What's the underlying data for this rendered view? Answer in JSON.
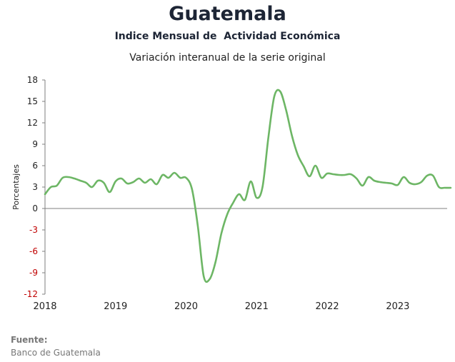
{
  "header": {
    "title": "Guatemala",
    "subtitle": "Indice Mensual de  Actividad Económica",
    "description": "Variación interanual de la serie original"
  },
  "footer": {
    "source_label": "Fuente:",
    "source": "Banco de Guatemala"
  },
  "chart_data": {
    "type": "line",
    "title": "Guatemala",
    "subtitle": "Indice Mensual de  Actividad Económica",
    "ylabel": "Porcentajes",
    "xlabel": "",
    "ylim": [
      -12,
      18
    ],
    "yticks": [
      18,
      15,
      12,
      9,
      6,
      3,
      0,
      -3,
      -6,
      -9,
      -12
    ],
    "xticks": [
      "2018",
      "2019",
      "2020",
      "2021",
      "2022",
      "2023"
    ],
    "grid": false,
    "line_color": "#6db665",
    "negative_tick_color": "#c00000",
    "series": [
      {
        "name": "",
        "x": [
          "2018-01",
          "2018-02",
          "2018-03",
          "2018-04",
          "2018-05",
          "2018-06",
          "2018-07",
          "2018-08",
          "2018-09",
          "2018-10",
          "2018-11",
          "2018-12",
          "2019-01",
          "2019-02",
          "2019-03",
          "2019-04",
          "2019-05",
          "2019-06",
          "2019-07",
          "2019-08",
          "2019-09",
          "2019-10",
          "2019-11",
          "2019-12",
          "2020-01",
          "2020-02",
          "2020-03",
          "2020-04",
          "2020-05",
          "2020-06",
          "2020-07",
          "2020-08",
          "2020-09",
          "2020-10",
          "2020-11",
          "2020-12",
          "2021-01",
          "2021-02",
          "2021-03",
          "2021-04",
          "2021-05",
          "2021-06",
          "2021-07",
          "2021-08",
          "2021-09",
          "2021-10",
          "2021-11",
          "2021-12",
          "2022-01",
          "2022-02",
          "2022-03",
          "2022-04",
          "2022-05",
          "2022-06",
          "2022-07",
          "2022-08",
          "2022-09",
          "2022-10",
          "2022-11",
          "2022-12",
          "2023-01",
          "2023-02",
          "2023-03",
          "2023-04",
          "2023-05",
          "2023-06",
          "2023-07",
          "2023-08",
          "2023-09",
          "2023-10"
        ],
        "values": [
          2.0,
          3.0,
          3.2,
          4.3,
          4.4,
          4.2,
          3.9,
          3.6,
          3.0,
          3.9,
          3.6,
          2.3,
          3.8,
          4.2,
          3.5,
          3.7,
          4.2,
          3.6,
          4.1,
          3.4,
          4.7,
          4.3,
          5.0,
          4.3,
          4.3,
          2.7,
          -2.5,
          -9.5,
          -9.9,
          -7.5,
          -3.5,
          -0.8,
          0.8,
          2.0,
          1.2,
          3.8,
          1.5,
          3.0,
          10.0,
          15.7,
          16.4,
          13.8,
          10.2,
          7.5,
          5.9,
          4.5,
          6.0,
          4.3,
          4.9,
          4.8,
          4.7,
          4.7,
          4.8,
          4.2,
          3.2,
          4.4,
          3.9,
          3.7,
          3.6,
          3.5,
          3.3,
          4.4,
          3.6,
          3.4,
          3.7,
          4.6,
          4.6,
          3.0,
          2.9,
          2.9
        ]
      }
    ]
  }
}
